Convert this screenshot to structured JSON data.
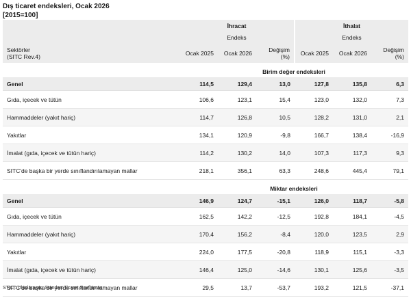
{
  "title": "Dış ticaret endeksleri, Ocak 2026",
  "subtitle": "[2015=100]",
  "header": {
    "export_label": "İhracat",
    "import_label": "İthalat",
    "index_label": "Endeks",
    "sectors_label_1": "Sektörler",
    "sectors_label_2": "(SITC Rev.4)",
    "col_2025": "Ocak 2025",
    "col_2026": "Ocak 2026",
    "change_1": "Değişim",
    "change_2": "(%)"
  },
  "sections": [
    {
      "title": "Birim değer endeksleri",
      "rows": [
        {
          "label": "Genel",
          "exp_2025": "114,5",
          "exp_2026": "129,4",
          "exp_chg": "13,0",
          "imp_2025": "127,8",
          "imp_2026": "135,8",
          "imp_chg": "6,3"
        },
        {
          "label": "Gıda, içecek ve tütün",
          "exp_2025": "106,6",
          "exp_2026": "123,1",
          "exp_chg": "15,4",
          "imp_2025": "123,0",
          "imp_2026": "132,0",
          "imp_chg": "7,3"
        },
        {
          "label": "Hammaddeler (yakıt hariç)",
          "exp_2025": "114,7",
          "exp_2026": "126,8",
          "exp_chg": "10,5",
          "imp_2025": "128,2",
          "imp_2026": "131,0",
          "imp_chg": "2,1"
        },
        {
          "label": "Yakıtlar",
          "exp_2025": "134,1",
          "exp_2026": "120,9",
          "exp_chg": "-9,8",
          "imp_2025": "166,7",
          "imp_2026": "138,4",
          "imp_chg": "-16,9"
        },
        {
          "label": "İmalat (gıda, içecek ve tütün hariç)",
          "exp_2025": "114,2",
          "exp_2026": "130,2",
          "exp_chg": "14,0",
          "imp_2025": "107,3",
          "imp_2026": "117,3",
          "imp_chg": "9,3"
        },
        {
          "label": "SITC'de başka bir yerde sınıflandırılamayan mallar",
          "exp_2025": "218,1",
          "exp_2026": "356,1",
          "exp_chg": "63,3",
          "imp_2025": "248,6",
          "imp_2026": "445,4",
          "imp_chg": "79,1"
        }
      ]
    },
    {
      "title": "Miktar endeksleri",
      "rows": [
        {
          "label": "Genel",
          "exp_2025": "146,9",
          "exp_2026": "124,7",
          "exp_chg": "-15,1",
          "imp_2025": "126,0",
          "imp_2026": "118,7",
          "imp_chg": "-5,8"
        },
        {
          "label": "Gıda, içecek ve tütün",
          "exp_2025": "162,5",
          "exp_2026": "142,2",
          "exp_chg": "-12,5",
          "imp_2025": "192,8",
          "imp_2026": "184,1",
          "imp_chg": "-4,5"
        },
        {
          "label": "Hammaddeler (yakıt hariç)",
          "exp_2025": "170,4",
          "exp_2026": "156,2",
          "exp_chg": "-8,4",
          "imp_2025": "120,0",
          "imp_2026": "123,5",
          "imp_chg": "2,9"
        },
        {
          "label": "Yakıtlar",
          "exp_2025": "224,0",
          "exp_2026": "177,5",
          "exp_chg": "-20,8",
          "imp_2025": "118,9",
          "imp_2026": "115,1",
          "imp_chg": "-3,3"
        },
        {
          "label": "İmalat (gıda, içecek ve tütün hariç)",
          "exp_2025": "146,4",
          "exp_2026": "125,0",
          "exp_chg": "-14,6",
          "imp_2025": "130,1",
          "imp_2026": "125,6",
          "imp_chg": "-3,5"
        },
        {
          "label": "SITC'de başka bir yerde sınıflandırılamayan mallar",
          "exp_2025": "29,5",
          "exp_2026": "13,7",
          "exp_chg": "-53,7",
          "imp_2025": "193,2",
          "imp_2026": "121,5",
          "imp_chg": "-37,1"
        }
      ]
    }
  ],
  "footnote": "STIC : Uluslararası Standart Ticaret Sınıflaması"
}
